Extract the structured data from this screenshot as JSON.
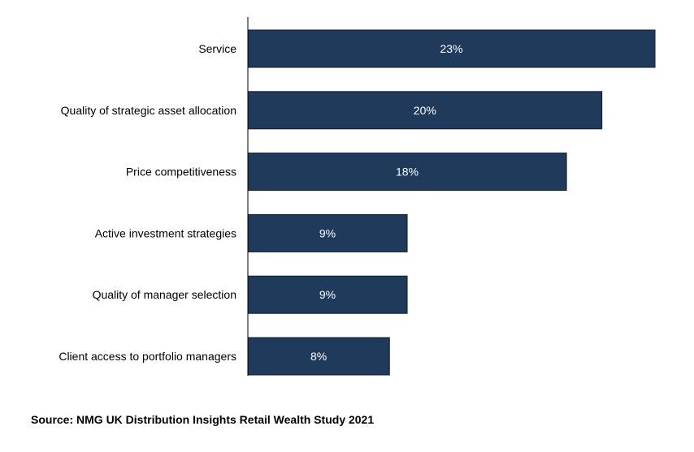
{
  "chart_data": {
    "type": "bar",
    "orientation": "horizontal",
    "categories": [
      "Service",
      "Quality of strategic asset allocation",
      "Price competitiveness",
      "Active investment strategies",
      "Quality of manager selection",
      "Client access to portfolio managers"
    ],
    "values": [
      23,
      20,
      18,
      9,
      9,
      8
    ],
    "data_labels": [
      "23%",
      "20%",
      "18%",
      "9%",
      "9%",
      "8%"
    ],
    "unit": "%",
    "xlim": [
      0,
      23
    ],
    "title": "",
    "xlabel": "",
    "ylabel": "",
    "grid": false,
    "legend": "none",
    "bar_color": "#1f3a5a",
    "bar_edge_color": "#0d1b2a"
  },
  "source": "Source: NMG UK Distribution Insights Retail Wealth Study 2021"
}
